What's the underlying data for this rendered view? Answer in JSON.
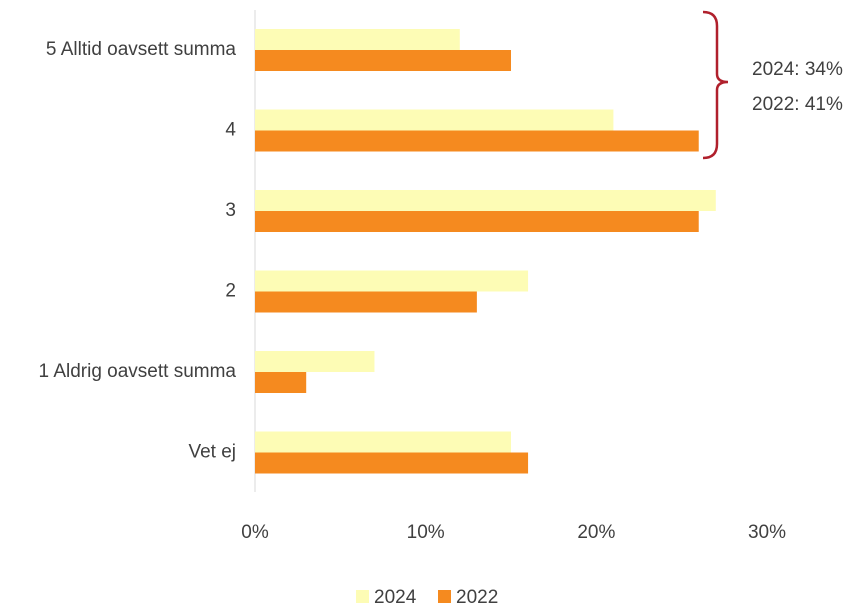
{
  "chart_data": {
    "type": "hbar",
    "categories": [
      "5 Alltid oavsett summa",
      "4",
      "3",
      "2",
      "1 Aldrig oavsett summa",
      "Vet ej"
    ],
    "series": [
      {
        "name": "2024",
        "color": "#fdfcb5",
        "values": [
          12,
          21,
          27,
          16,
          7,
          15
        ]
      },
      {
        "name": "2022",
        "color": "#f58a1f",
        "values": [
          15,
          26,
          26,
          13,
          3,
          16
        ]
      }
    ],
    "xlim": [
      0,
      30
    ],
    "xticks": [
      {
        "value": 0,
        "label": "0%"
      },
      {
        "value": 10,
        "label": "10%"
      },
      {
        "value": 20,
        "label": "20%"
      },
      {
        "value": 30,
        "label": "30%"
      }
    ],
    "annotations": [
      "2024: 34%",
      "2022: 41%"
    ],
    "legend": "bottom"
  }
}
